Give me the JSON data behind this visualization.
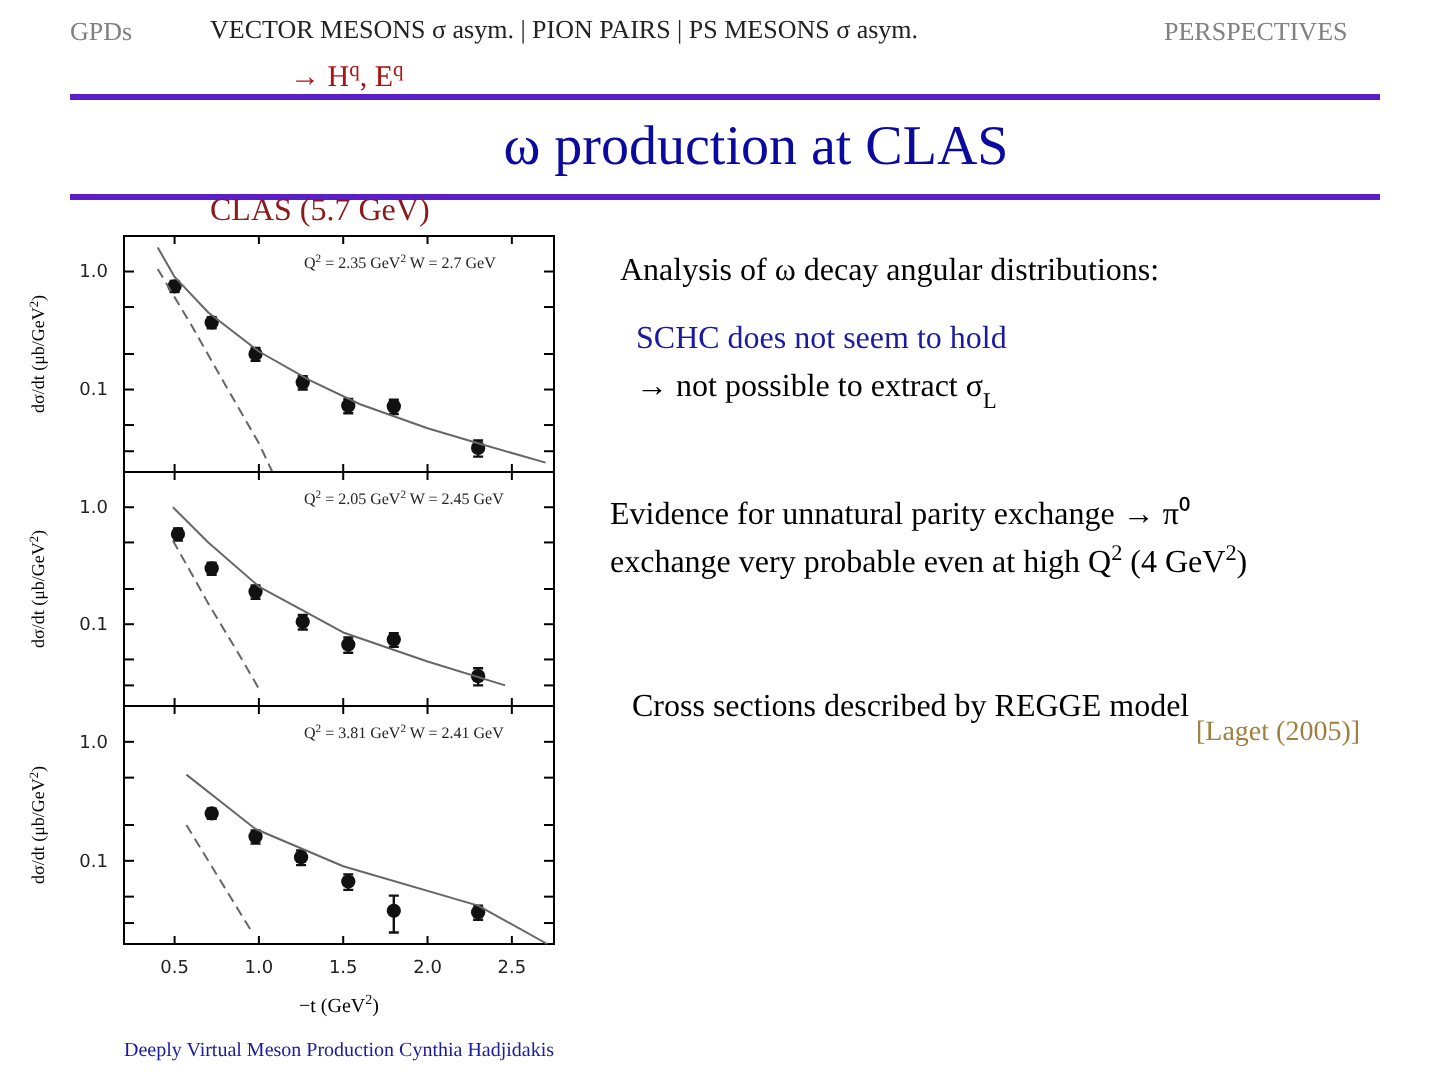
{
  "chart_data": [
    {
      "type": "other",
      "title": "ω production at CLAS",
      "annotations": [
        "GPDs",
        "VECTOR MESONS  σ asym.  | PION PAIRS | PS MESONS  σ asym.",
        "PERSPECTIVES",
        "→ H$^{q}$, E$^{q}$",
        "Analysis of ω decay angular distributions:",
        "SCHC does not seem to hold",
        "→ not possible to extract σ$_{L}$",
        "Evidence for unnatural parity exchange → π⁰",
        "exchange very probable even at high Q$^{2}$ (4 GeV$^{2}$)",
        "Cross sections described by REGGE model",
        "[Laget (2005)]",
        "Deeply Virtual Meson Production Cynthia Hadjidakis"
      ]
    },
    {
      "type": "scatter",
      "title": "CLAS (5.7 GeV)",
      "ylabel": "dσ/dt (μb/GeV$^{2}$)",
      "annotations": [
        "Q$^{2}$ = 2.35 GeV$^{2}$  W = 2.7 GeV"
      ],
      "log": "y",
      "tick_labels": "y",
      "xlim": [
        0.2,
        2.75
      ],
      "ylim": [
        0.02,
        2
      ],
      "yticks": [
        {
          "value": 0.03,
          "label": null
        },
        {
          "value": 0.05,
          "label": null
        },
        {
          "value": 0.1,
          "label": "0.1"
        },
        {
          "value": 0.2,
          "label": null
        },
        {
          "value": 0.5,
          "label": null
        },
        {
          "value": 1,
          "label": "1.0"
        }
      ],
      "series": [
        {
          "type": "scatter",
          "color": "#111111",
          "marker": "circle",
          "x": [
            0.5,
            0.72,
            0.98,
            1.26,
            1.53,
            1.8,
            2.3
          ],
          "values": [
            0.75,
            0.37,
            0.2,
            0.115,
            0.073,
            0.072,
            0.032
          ],
          "errors": [
            0.08,
            0.04,
            0.025,
            0.015,
            0.01,
            0.01,
            0.005
          ]
        },
        {
          "type": "line",
          "color": "#666666",
          "line_style": "solid",
          "x": [
            0.4,
            0.5,
            0.7,
            1.0,
            1.3,
            1.6,
            2.0,
            2.3,
            2.7
          ],
          "values": [
            1.6,
            0.9,
            0.45,
            0.21,
            0.12,
            0.075,
            0.047,
            0.035,
            0.024
          ]
        },
        {
          "type": "line",
          "color": "#666666",
          "line_style": "dashed",
          "x": [
            0.4,
            0.6,
            0.8,
            1.0,
            1.08
          ],
          "values": [
            1.05,
            0.35,
            0.11,
            0.035,
            0.02
          ]
        }
      ]
    },
    {
      "type": "scatter",
      "ylabel": "dσ/dt (μb/GeV$^{2}$)",
      "annotations": [
        "Q$^{2}$ = 2.05 GeV$^{2}$  W = 2.45 GeV"
      ],
      "log": "y",
      "tick_labels": "y",
      "xlim": [
        0.2,
        2.75
      ],
      "ylim": [
        0.02,
        2
      ],
      "yticks": [
        {
          "value": 0.03,
          "label": null
        },
        {
          "value": 0.05,
          "label": null
        },
        {
          "value": 0.1,
          "label": "0.1"
        },
        {
          "value": 0.2,
          "label": null
        },
        {
          "value": 0.5,
          "label": null
        },
        {
          "value": 1,
          "label": "1.0"
        }
      ],
      "series": [
        {
          "type": "scatter",
          "color": "#111111",
          "marker": "circle",
          "x": [
            0.52,
            0.72,
            0.98,
            1.26,
            1.53,
            1.8,
            2.3
          ],
          "values": [
            0.59,
            0.3,
            0.19,
            0.105,
            0.067,
            0.074,
            0.036
          ],
          "errors": [
            0.07,
            0.035,
            0.025,
            0.015,
            0.01,
            0.01,
            0.006
          ]
        },
        {
          "type": "line",
          "color": "#666666",
          "line_style": "solid",
          "x": [
            0.49,
            0.7,
            1.0,
            1.5,
            2.0,
            2.46
          ],
          "values": [
            1.0,
            0.5,
            0.21,
            0.085,
            0.048,
            0.03
          ]
        },
        {
          "type": "line",
          "color": "#666666",
          "line_style": "dashed",
          "x": [
            0.49,
            0.7,
            0.9,
            1.0
          ],
          "values": [
            0.52,
            0.15,
            0.05,
            0.028
          ]
        }
      ]
    },
    {
      "type": "scatter",
      "xlabel": "−t (GeV$^{2}$)",
      "ylabel": "dσ/dt (μb/GeV$^{2}$)",
      "annotations": [
        "Q$^{2}$ = 3.81 GeV$^{2}$  W = 2.41 GeV"
      ],
      "log": "y",
      "xlim": [
        0.2,
        2.75
      ],
      "xticks": [
        0.5,
        {
          "value": 1,
          "label": "1.0"
        },
        1.5,
        {
          "value": 2,
          "label": "2.0"
        },
        2.5
      ],
      "ylim": [
        0.02,
        2
      ],
      "yticks": [
        {
          "value": 0.03,
          "label": null
        },
        {
          "value": 0.05,
          "label": null
        },
        {
          "value": 0.1,
          "label": "0.1"
        },
        {
          "value": 0.2,
          "label": null
        },
        {
          "value": 0.5,
          "label": null
        },
        {
          "value": 1,
          "label": "1.0"
        }
      ],
      "series": [
        {
          "type": "scatter",
          "color": "#111111",
          "marker": "circle",
          "x": [
            0.72,
            0.98,
            1.25,
            1.53,
            1.8,
            2.3
          ],
          "values": [
            0.25,
            0.16,
            0.107,
            0.067,
            0.038,
            0.037
          ],
          "errors": [
            0.025,
            0.02,
            0.015,
            0.01,
            0.013,
            0.005
          ]
        },
        {
          "type": "line",
          "color": "#666666",
          "line_style": "solid",
          "x": [
            0.57,
            0.98,
            1.5,
            2.3,
            2.71
          ],
          "values": [
            0.53,
            0.185,
            0.09,
            0.042,
            0.02
          ]
        },
        {
          "type": "line",
          "color": "#666666",
          "line_style": "dashed",
          "x": [
            0.57,
            0.96
          ],
          "values": [
            0.2,
            0.025
          ]
        }
      ]
    }
  ]
}
